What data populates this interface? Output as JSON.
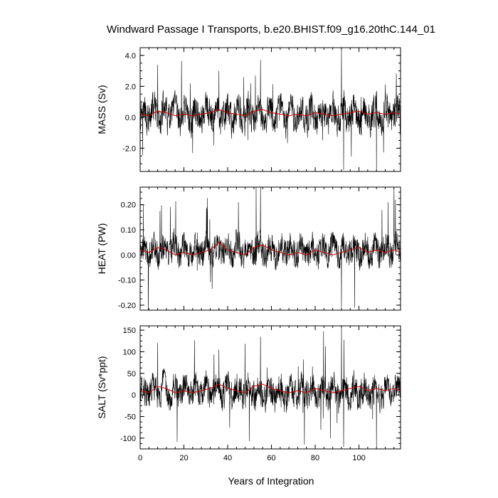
{
  "figure": {
    "title": "Windward Passage I Transports, b.e20.BHIST.f09_g16.20thC.144_01",
    "xlabel": "Years of Integration"
  },
  "colors": {
    "raw_series": "#000000",
    "smoothed_series": "#d40000",
    "frame": "#000000",
    "background": "#ffffff"
  },
  "chart_data": [
    {
      "type": "line",
      "ylabel": "MASS (Sv)",
      "xlim": [
        0,
        119
      ],
      "ylim": [
        -3.5,
        4.5
      ],
      "xticks": [
        0,
        20,
        40,
        60,
        80,
        100
      ],
      "xtick_labels": [
        "0",
        "20",
        "40",
        "60",
        "80",
        "100"
      ],
      "yticks": [
        -2.0,
        0.0,
        2.0,
        4.0
      ],
      "ytick_labels": [
        "-2.0",
        "0.0",
        "2.0",
        "4.0"
      ],
      "x_tick_labels_visible": false,
      "grid": false,
      "series": [
        {
          "kind": "monthly",
          "color": "#000000",
          "mean": 0.15,
          "amplitude": 0.9,
          "spike": 3.0,
          "x": [
            0,
            119
          ],
          "y_summary": {
            "min": -3.4,
            "max": 4.4,
            "spikes": [
              [
                8,
                3.4
              ],
              [
                36,
                3.0
              ],
              [
                55,
                3.7
              ],
              [
                92,
                4.4
              ],
              [
                93,
                -3.4
              ],
              [
                108,
                -3.4
              ],
              [
                120,
                -3.0
              ]
            ]
          }
        },
        {
          "kind": "smoothed",
          "color": "#d40000",
          "x": [
            0,
            4,
            8,
            12,
            16,
            20,
            24,
            28,
            32,
            36,
            40,
            44,
            48,
            52,
            56,
            60,
            64,
            68,
            72,
            76,
            80,
            84,
            88,
            92,
            96,
            100,
            104,
            108,
            112,
            116,
            119
          ],
          "y": [
            0.2,
            0.1,
            0.4,
            0.3,
            0.1,
            0.2,
            0.1,
            0.2,
            0.3,
            0.5,
            0.3,
            0.2,
            0.1,
            0.4,
            0.5,
            0.3,
            0.2,
            0.1,
            0.2,
            0.1,
            0.3,
            0.2,
            0.1,
            0.2,
            0.3,
            0.4,
            0.2,
            0.3,
            0.2,
            0.3,
            0.2
          ]
        }
      ]
    },
    {
      "type": "line",
      "ylabel": "HEAT (PW)",
      "xlim": [
        0,
        119
      ],
      "ylim": [
        -0.22,
        0.27
      ],
      "xticks": [
        0,
        20,
        40,
        60,
        80,
        100
      ],
      "xtick_labels": [
        "0",
        "20",
        "40",
        "60",
        "80",
        "100"
      ],
      "yticks": [
        -0.2,
        -0.1,
        0.0,
        0.1,
        0.2
      ],
      "ytick_labels": [
        "-0.20",
        "-0.10",
        "0.00",
        "0.10",
        "0.20"
      ],
      "x_tick_labels_visible": false,
      "grid": false,
      "series": [
        {
          "kind": "monthly",
          "color": "#000000",
          "mean": 0.02,
          "amplitude": 0.05,
          "spike": 0.2,
          "x": [
            0,
            119
          ],
          "y_summary": {
            "min": -0.22,
            "max": 0.27,
            "spikes": [
              [
                53,
                0.27
              ],
              [
                55,
                0.27
              ],
              [
                92,
                -0.21
              ],
              [
                98,
                -0.21
              ],
              [
                116,
                0.27
              ]
            ]
          }
        },
        {
          "kind": "smoothed",
          "color": "#d40000",
          "x": [
            0,
            4,
            8,
            12,
            16,
            20,
            24,
            28,
            32,
            36,
            40,
            44,
            48,
            52,
            56,
            60,
            64,
            68,
            72,
            76,
            80,
            84,
            88,
            92,
            96,
            100,
            104,
            108,
            112,
            116,
            119
          ],
          "y": [
            0.02,
            0.01,
            0.03,
            0.02,
            0.0,
            0.01,
            0.0,
            0.01,
            0.02,
            0.05,
            0.02,
            0.01,
            0.0,
            0.03,
            0.04,
            0.02,
            0.01,
            0.0,
            0.01,
            0.0,
            0.02,
            0.01,
            0.0,
            0.01,
            0.02,
            0.03,
            0.01,
            0.02,
            0.01,
            0.02,
            0.01
          ]
        }
      ]
    },
    {
      "type": "line",
      "ylabel": "SALT (Sv*ppt)",
      "xlim": [
        0,
        119
      ],
      "ylim": [
        -125,
        160
      ],
      "xticks": [
        0,
        20,
        40,
        60,
        80,
        100
      ],
      "xtick_labels": [
        "0",
        "20",
        "40",
        "60",
        "80",
        "100"
      ],
      "yticks": [
        -100,
        -50,
        0,
        50,
        100,
        150
      ],
      "ytick_labels": [
        "-100",
        "-50",
        "0",
        "50",
        "100",
        "150"
      ],
      "x_tick_labels_visible": true,
      "grid": false,
      "series": [
        {
          "kind": "monthly",
          "color": "#000000",
          "mean": 8,
          "amplitude": 30,
          "spike": 110,
          "x": [
            0,
            119
          ],
          "y_summary": {
            "min": -120,
            "max": 155,
            "spikes": [
              [
                8,
                120
              ],
              [
                36,
                105
              ],
              [
                55,
                135
              ],
              [
                92,
                155
              ],
              [
                93,
                -120
              ],
              [
                108,
                -120
              ]
            ]
          }
        },
        {
          "kind": "smoothed",
          "color": "#d40000",
          "x": [
            0,
            4,
            8,
            12,
            16,
            20,
            24,
            28,
            32,
            36,
            40,
            44,
            48,
            52,
            56,
            60,
            64,
            68,
            72,
            76,
            80,
            84,
            88,
            92,
            96,
            100,
            104,
            108,
            112,
            116,
            119
          ],
          "y": [
            10,
            5,
            20,
            15,
            5,
            10,
            5,
            10,
            15,
            25,
            15,
            10,
            5,
            20,
            25,
            15,
            10,
            5,
            10,
            5,
            15,
            10,
            5,
            10,
            15,
            20,
            10,
            15,
            10,
            15,
            10
          ]
        }
      ]
    }
  ]
}
